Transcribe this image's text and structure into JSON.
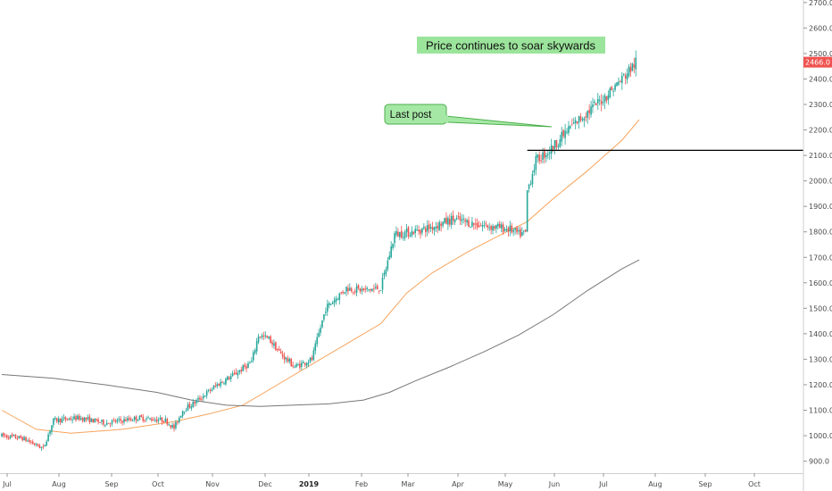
{
  "chart_data": {
    "type": "candlestick",
    "price_tag": "2466.0",
    "annotations": {
      "headline": "Price continues to soar skywards",
      "last_post": "Last post"
    },
    "horizontal_line": 2120,
    "y_axis": {
      "ylim": [
        853,
        2710
      ],
      "ticks": [
        "900.0",
        "1000.0",
        "1100.0",
        "1200.0",
        "1300.0",
        "1400.0",
        "1500.0",
        "1600.0",
        "1700.0",
        "1800.0",
        "1900.0",
        "2000.0",
        "2100.0",
        "2200.0",
        "2300.0",
        "2400.0",
        "2500.0",
        "2600.0",
        "2700.0"
      ]
    },
    "x_axis": {
      "labels": [
        "Jul",
        "Aug",
        "Sep",
        "Oct",
        "Nov",
        "Dec",
        "2019",
        "Feb",
        "Mar",
        "Apr",
        "May",
        "Jun",
        "Jul",
        "Aug",
        "Sep",
        "Oct"
      ],
      "bold": [
        "2019"
      ]
    },
    "price_anchors": [
      {
        "d": 0,
        "p": 1000
      },
      {
        "d": 12,
        "p": 990
      },
      {
        "d": 24,
        "p": 950
      },
      {
        "d": 30,
        "p": 1060
      },
      {
        "d": 45,
        "p": 1070
      },
      {
        "d": 60,
        "p": 1050
      },
      {
        "d": 80,
        "p": 1070
      },
      {
        "d": 95,
        "p": 1060
      },
      {
        "d": 100,
        "p": 1030
      },
      {
        "d": 105,
        "p": 1100
      },
      {
        "d": 112,
        "p": 1130
      },
      {
        "d": 125,
        "p": 1200
      },
      {
        "d": 135,
        "p": 1240
      },
      {
        "d": 145,
        "p": 1290
      },
      {
        "d": 149,
        "p": 1395
      },
      {
        "d": 155,
        "p": 1380
      },
      {
        "d": 162,
        "p": 1320
      },
      {
        "d": 170,
        "p": 1270
      },
      {
        "d": 180,
        "p": 1300
      },
      {
        "d": 188,
        "p": 1500
      },
      {
        "d": 200,
        "p": 1580
      },
      {
        "d": 210,
        "p": 1570
      },
      {
        "d": 220,
        "p": 1580
      },
      {
        "d": 228,
        "p": 1790
      },
      {
        "d": 238,
        "p": 1800
      },
      {
        "d": 250,
        "p": 1820
      },
      {
        "d": 262,
        "p": 1850
      },
      {
        "d": 275,
        "p": 1830
      },
      {
        "d": 285,
        "p": 1820
      },
      {
        "d": 295,
        "p": 1810
      },
      {
        "d": 300,
        "p": 1790
      },
      {
        "d": 304,
        "p": 1795
      },
      {
        "d": 305,
        "p": 1960
      },
      {
        "d": 310,
        "p": 2080
      },
      {
        "d": 318,
        "p": 2120
      },
      {
        "d": 330,
        "p": 2210
      },
      {
        "d": 340,
        "p": 2270
      },
      {
        "d": 350,
        "p": 2330
      },
      {
        "d": 360,
        "p": 2400
      },
      {
        "d": 368,
        "p": 2466
      }
    ],
    "series": [
      {
        "type": "candles",
        "color_up": "#26a69a",
        "color_down": "#ef5350"
      },
      {
        "type": "moving_average",
        "color": "#f7a35c",
        "points": [
          [
            0,
            1100
          ],
          [
            20,
            1025
          ],
          [
            40,
            1010
          ],
          [
            70,
            1025
          ],
          [
            100,
            1055
          ],
          [
            120,
            1085
          ],
          [
            140,
            1120
          ],
          [
            160,
            1200
          ],
          [
            180,
            1280
          ],
          [
            200,
            1360
          ],
          [
            220,
            1440
          ],
          [
            235,
            1560
          ],
          [
            250,
            1640
          ],
          [
            270,
            1720
          ],
          [
            290,
            1790
          ],
          [
            305,
            1840
          ],
          [
            320,
            1930
          ],
          [
            340,
            2040
          ],
          [
            360,
            2160
          ],
          [
            370,
            2240
          ]
        ]
      },
      {
        "type": "moving_average",
        "color": "#777777",
        "points": [
          [
            0,
            1240
          ],
          [
            30,
            1225
          ],
          [
            60,
            1200
          ],
          [
            90,
            1170
          ],
          [
            110,
            1140
          ],
          [
            130,
            1120
          ],
          [
            150,
            1115
          ],
          [
            170,
            1120
          ],
          [
            190,
            1125
          ],
          [
            210,
            1140
          ],
          [
            225,
            1170
          ],
          [
            240,
            1215
          ],
          [
            260,
            1270
          ],
          [
            280,
            1330
          ],
          [
            300,
            1395
          ],
          [
            320,
            1475
          ],
          [
            340,
            1570
          ],
          [
            360,
            1655
          ],
          [
            370,
            1690
          ]
        ]
      }
    ]
  }
}
